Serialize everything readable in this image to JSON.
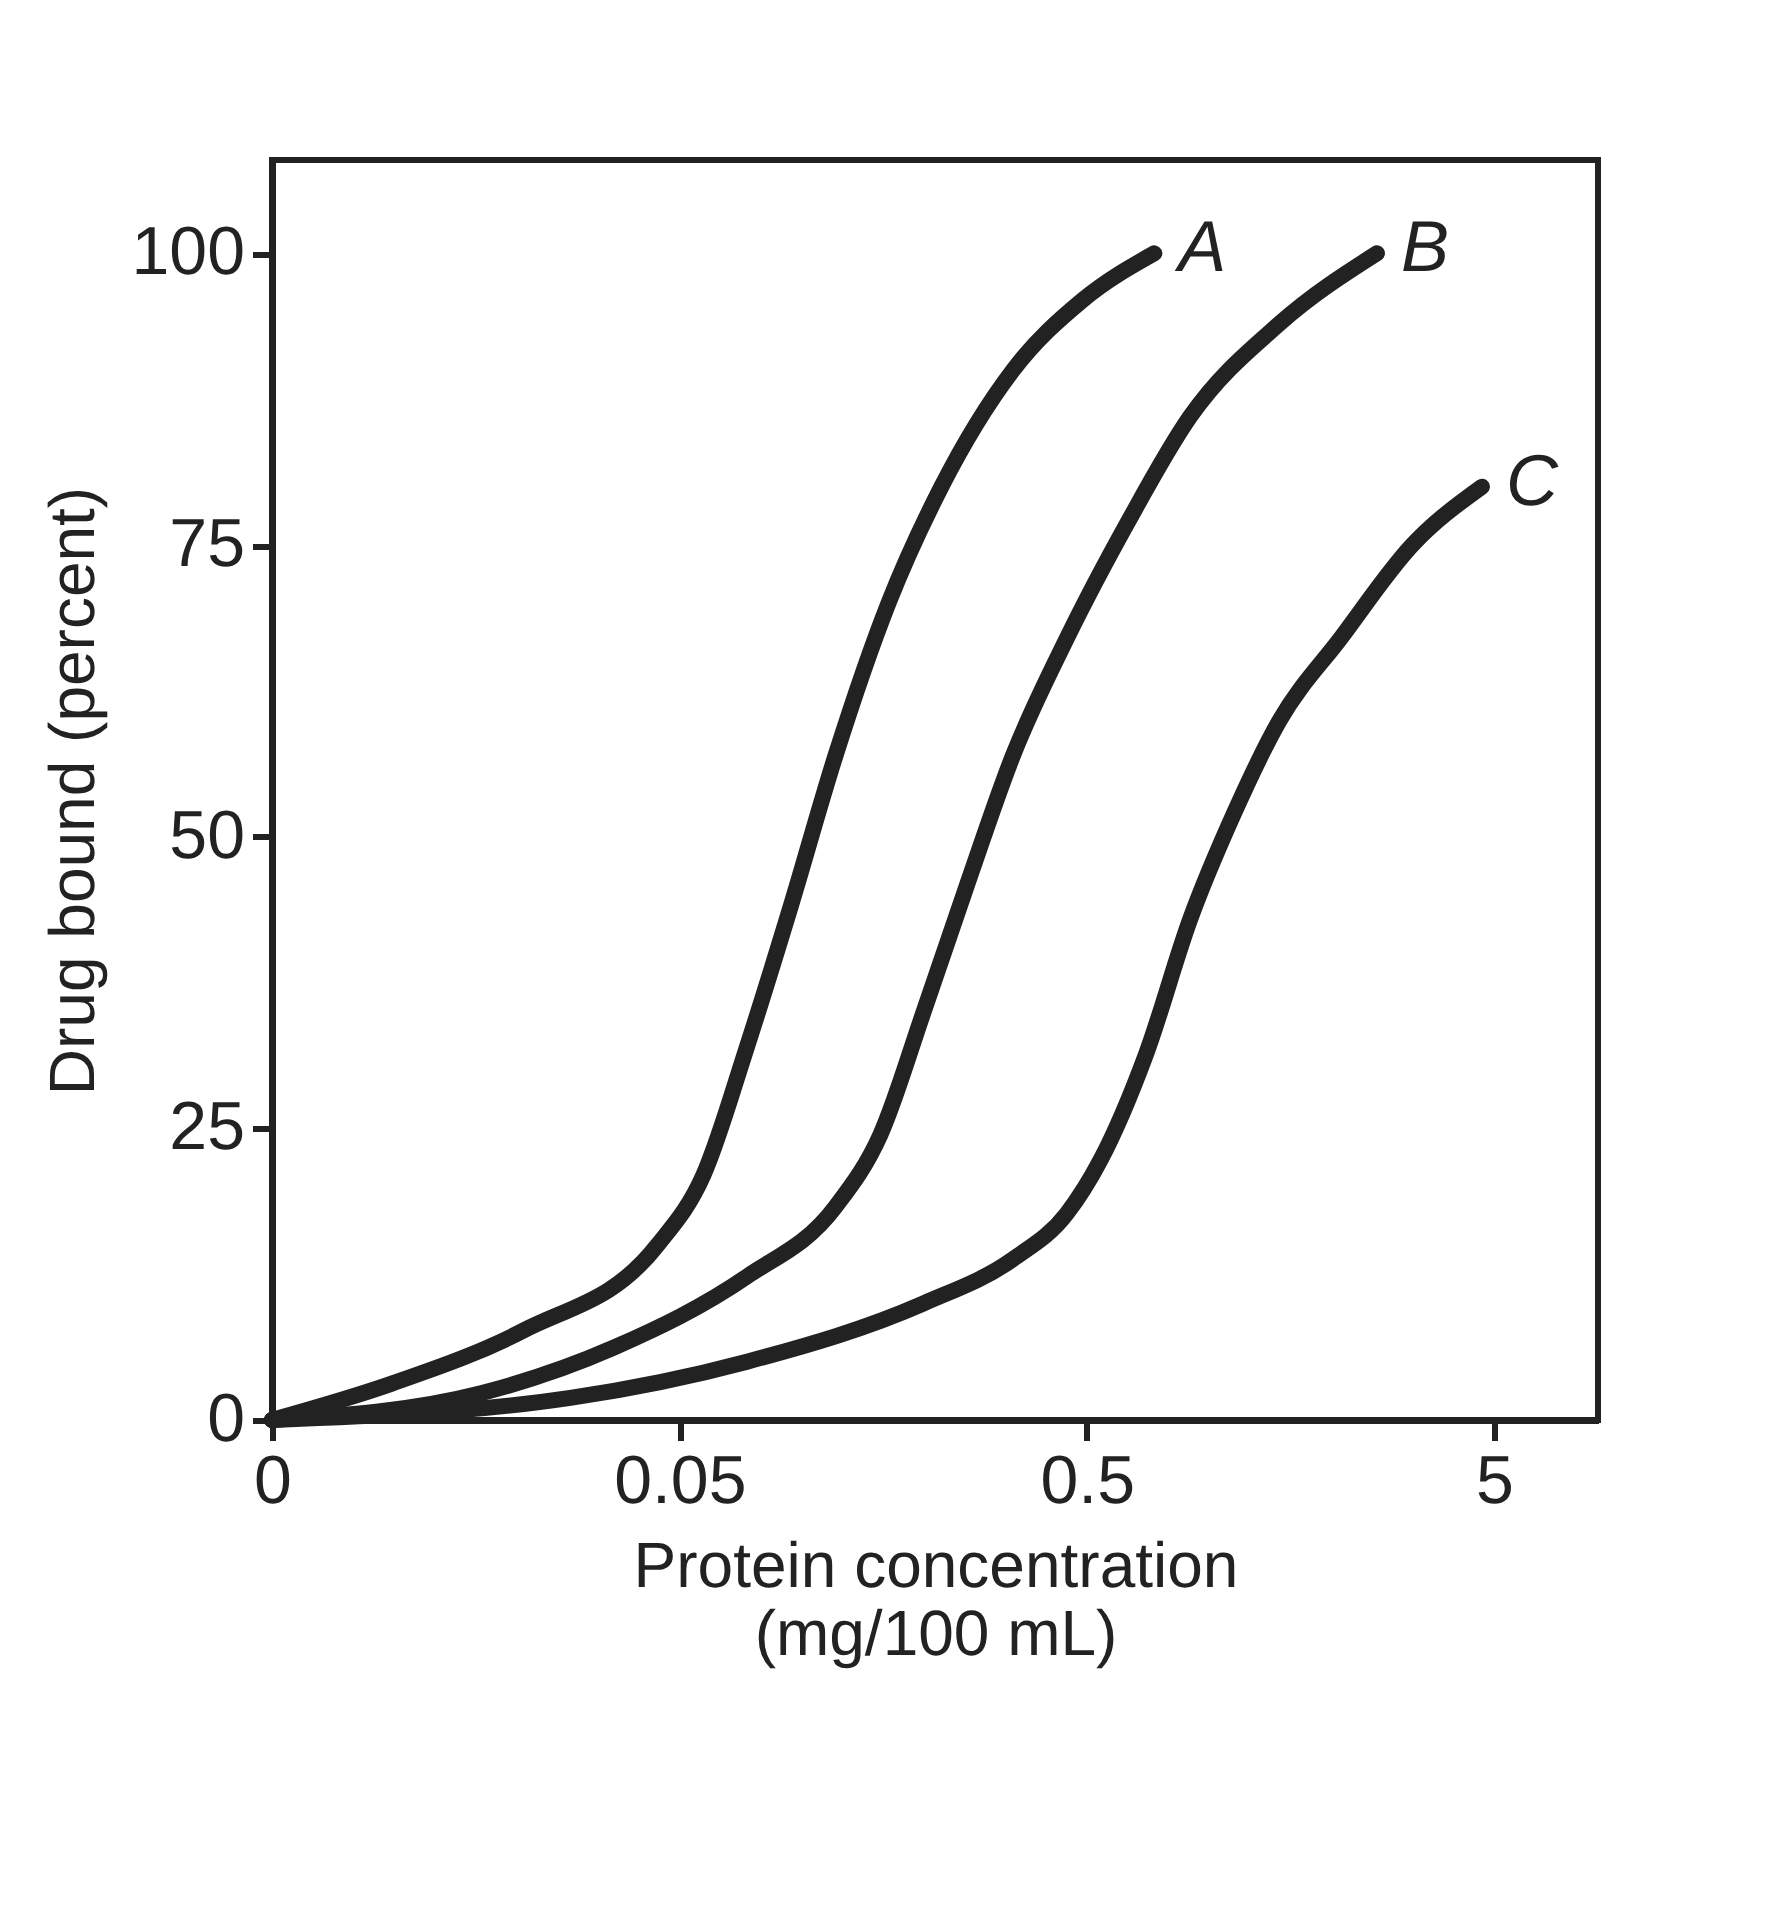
{
  "chart_data": {
    "type": "line",
    "xlabel": "Protein concentration\n(mg/100 mL)",
    "ylabel": "Drug bound (percent)",
    "log": "x",
    "xlim": [
      0.005,
      9
    ],
    "xticks": [
      {
        "value": 0.005,
        "label": "0"
      },
      0.05,
      0.5,
      5
    ],
    "ylim": [
      0,
      108
    ],
    "yticks": [
      0,
      25,
      50,
      75,
      100
    ],
    "grid": false,
    "line_style": "solid",
    "series": [
      {
        "name": "A",
        "color": "#222222",
        "x": [
          0.005,
          0.0098,
          0.0208,
          0.0442,
          0.0573,
          0.0733,
          0.0938,
          0.121,
          0.163,
          0.22,
          0.33,
          0.489,
          0.733
        ],
        "values": [
          0,
          3.1,
          7.7,
          15,
          21,
          32,
          44,
          57,
          70,
          80,
          90,
          96,
          100
        ]
      },
      {
        "name": "B",
        "color": "#222222",
        "x": [
          0.005,
          0.0163,
          0.0345,
          0.0733,
          0.121,
          0.156,
          0.199,
          0.255,
          0.33,
          0.447,
          0.632,
          0.897,
          1.49,
          2.58
        ],
        "values": [
          0,
          2.3,
          6.2,
          12.3,
          18.3,
          24.5,
          35,
          46,
          57,
          67,
          77,
          86,
          94,
          100
        ]
      },
      {
        "name": "C",
        "color": "#222222",
        "x": [
          0.005,
          0.027,
          0.0733,
          0.199,
          0.33,
          0.447,
          0.541,
          0.7,
          0.897,
          1.15,
          1.49,
          2.1,
          3.15,
          4.67
        ],
        "values": [
          0,
          1.9,
          5,
          10,
          13.8,
          17.7,
          22.3,
          31.4,
          42.9,
          52,
          60,
          67,
          75,
          80
        ]
      }
    ]
  }
}
